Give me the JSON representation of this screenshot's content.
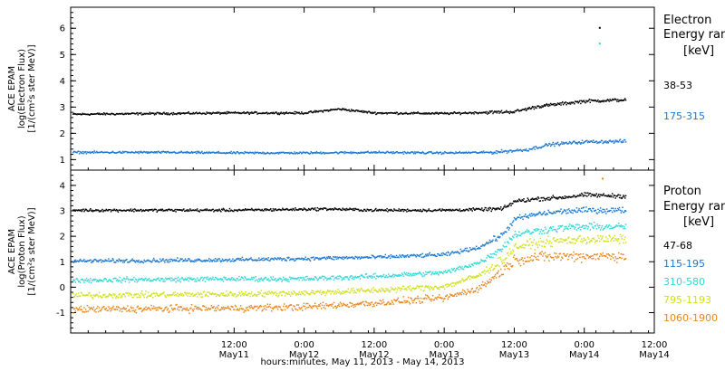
{
  "colors": {
    "black": "#000000",
    "blue": "#1b78d2",
    "cyan": "#2ed8d6",
    "yellow": "#cfe01a",
    "orange": "#e8861c"
  },
  "x_axis": {
    "title": "hours:minutes, May 11, 2013 - May 14, 2013",
    "range_hours": [
      -16,
      84
    ],
    "ticks": [
      {
        "time": "12:00",
        "day": "May11",
        "hour": 12
      },
      {
        "time": "0:00",
        "day": "May12",
        "hour": 24
      },
      {
        "time": "12:00",
        "day": "May12",
        "hour": 36
      },
      {
        "time": "0:00",
        "day": "May13",
        "hour": 48
      },
      {
        "time": "12:00",
        "day": "May13",
        "hour": 60
      },
      {
        "time": "0:00",
        "day": "May14",
        "hour": 72
      },
      {
        "time": "12:00",
        "day": "May14",
        "hour": 84
      }
    ]
  },
  "chart_data": [
    {
      "type": "scatter",
      "panel": "electron",
      "ylabel": [
        "ACE EPAM",
        "log(Electron Flux)",
        "[1/(cm²s ster MeV)]"
      ],
      "ylim": [
        0.6,
        6.8
      ],
      "yticks": [
        1,
        2,
        3,
        4,
        5,
        6
      ],
      "legend": {
        "title": [
          "Electron",
          "Energy ran"
        ],
        "unit": "[keV]"
      },
      "series": [
        {
          "name": "38-53",
          "color": "black",
          "x_hours": [
            -16,
            0,
            12,
            24,
            30,
            36,
            48,
            60,
            64,
            72,
            79
          ],
          "y": [
            2.75,
            2.78,
            2.8,
            2.8,
            2.95,
            2.8,
            2.78,
            2.85,
            3.05,
            3.25,
            3.3
          ]
        },
        {
          "name": "175-315",
          "color": "blue",
          "x_hours": [
            -16,
            0,
            12,
            24,
            36,
            48,
            56,
            62,
            66,
            72,
            79
          ],
          "y": [
            1.3,
            1.3,
            1.28,
            1.28,
            1.3,
            1.28,
            1.3,
            1.4,
            1.6,
            1.7,
            1.72
          ]
        }
      ],
      "outliers": [
        {
          "x_hours": 74.5,
          "y": 6.05,
          "color": "black"
        },
        {
          "x_hours": 74.5,
          "y": 5.45,
          "color": "cyan"
        }
      ]
    },
    {
      "type": "scatter",
      "panel": "proton",
      "ylabel": [
        "ACE EPAM",
        "log(Proton Flux)",
        "[1/(cm²s ster MeV)]"
      ],
      "ylim": [
        -1.8,
        4.6
      ],
      "yticks": [
        -1,
        0,
        1,
        2,
        3,
        4
      ],
      "legend": {
        "title": [
          "Proton",
          "Energy ran"
        ],
        "unit": "[keV]"
      },
      "series": [
        {
          "name": "47-68",
          "color": "black",
          "x_hours": [
            -16,
            12,
            28,
            36,
            48,
            58,
            60,
            64,
            68,
            72,
            79
          ],
          "y": [
            3.05,
            3.05,
            3.1,
            3.05,
            3.05,
            3.1,
            3.4,
            3.5,
            3.55,
            3.65,
            3.6
          ]
        },
        {
          "name": "115-195",
          "color": "blue",
          "x_hours": [
            -16,
            12,
            24,
            36,
            48,
            54,
            58,
            60,
            64,
            68,
            72,
            79
          ],
          "y": [
            1.05,
            1.1,
            1.15,
            1.2,
            1.3,
            1.6,
            2.1,
            2.7,
            2.9,
            3.0,
            3.05,
            3.05
          ]
        },
        {
          "name": "310-580",
          "color": "cyan",
          "x_hours": [
            -16,
            12,
            24,
            36,
            48,
            54,
            58,
            60,
            64,
            68,
            72,
            79
          ],
          "y": [
            0.3,
            0.35,
            0.35,
            0.45,
            0.6,
            1.0,
            1.6,
            2.1,
            2.25,
            2.35,
            2.4,
            2.4
          ]
        },
        {
          "name": "795-1193",
          "color": "yellow",
          "x_hours": [
            -16,
            12,
            24,
            36,
            48,
            54,
            58,
            60,
            64,
            68,
            72,
            79
          ],
          "y": [
            -0.3,
            -0.25,
            -0.2,
            -0.1,
            0.05,
            0.5,
            1.1,
            1.6,
            1.75,
            1.85,
            1.9,
            1.9
          ]
        },
        {
          "name": "1060-1900",
          "color": "orange",
          "x_hours": [
            -16,
            12,
            24,
            36,
            48,
            54,
            58,
            60,
            64,
            68,
            72,
            79
          ],
          "y": [
            -0.85,
            -0.8,
            -0.75,
            -0.6,
            -0.4,
            0.0,
            0.7,
            1.1,
            1.2,
            1.25,
            1.25,
            1.25
          ]
        }
      ],
      "outliers": [
        {
          "x_hours": 75,
          "y": 4.3,
          "color": "orange"
        }
      ]
    }
  ]
}
